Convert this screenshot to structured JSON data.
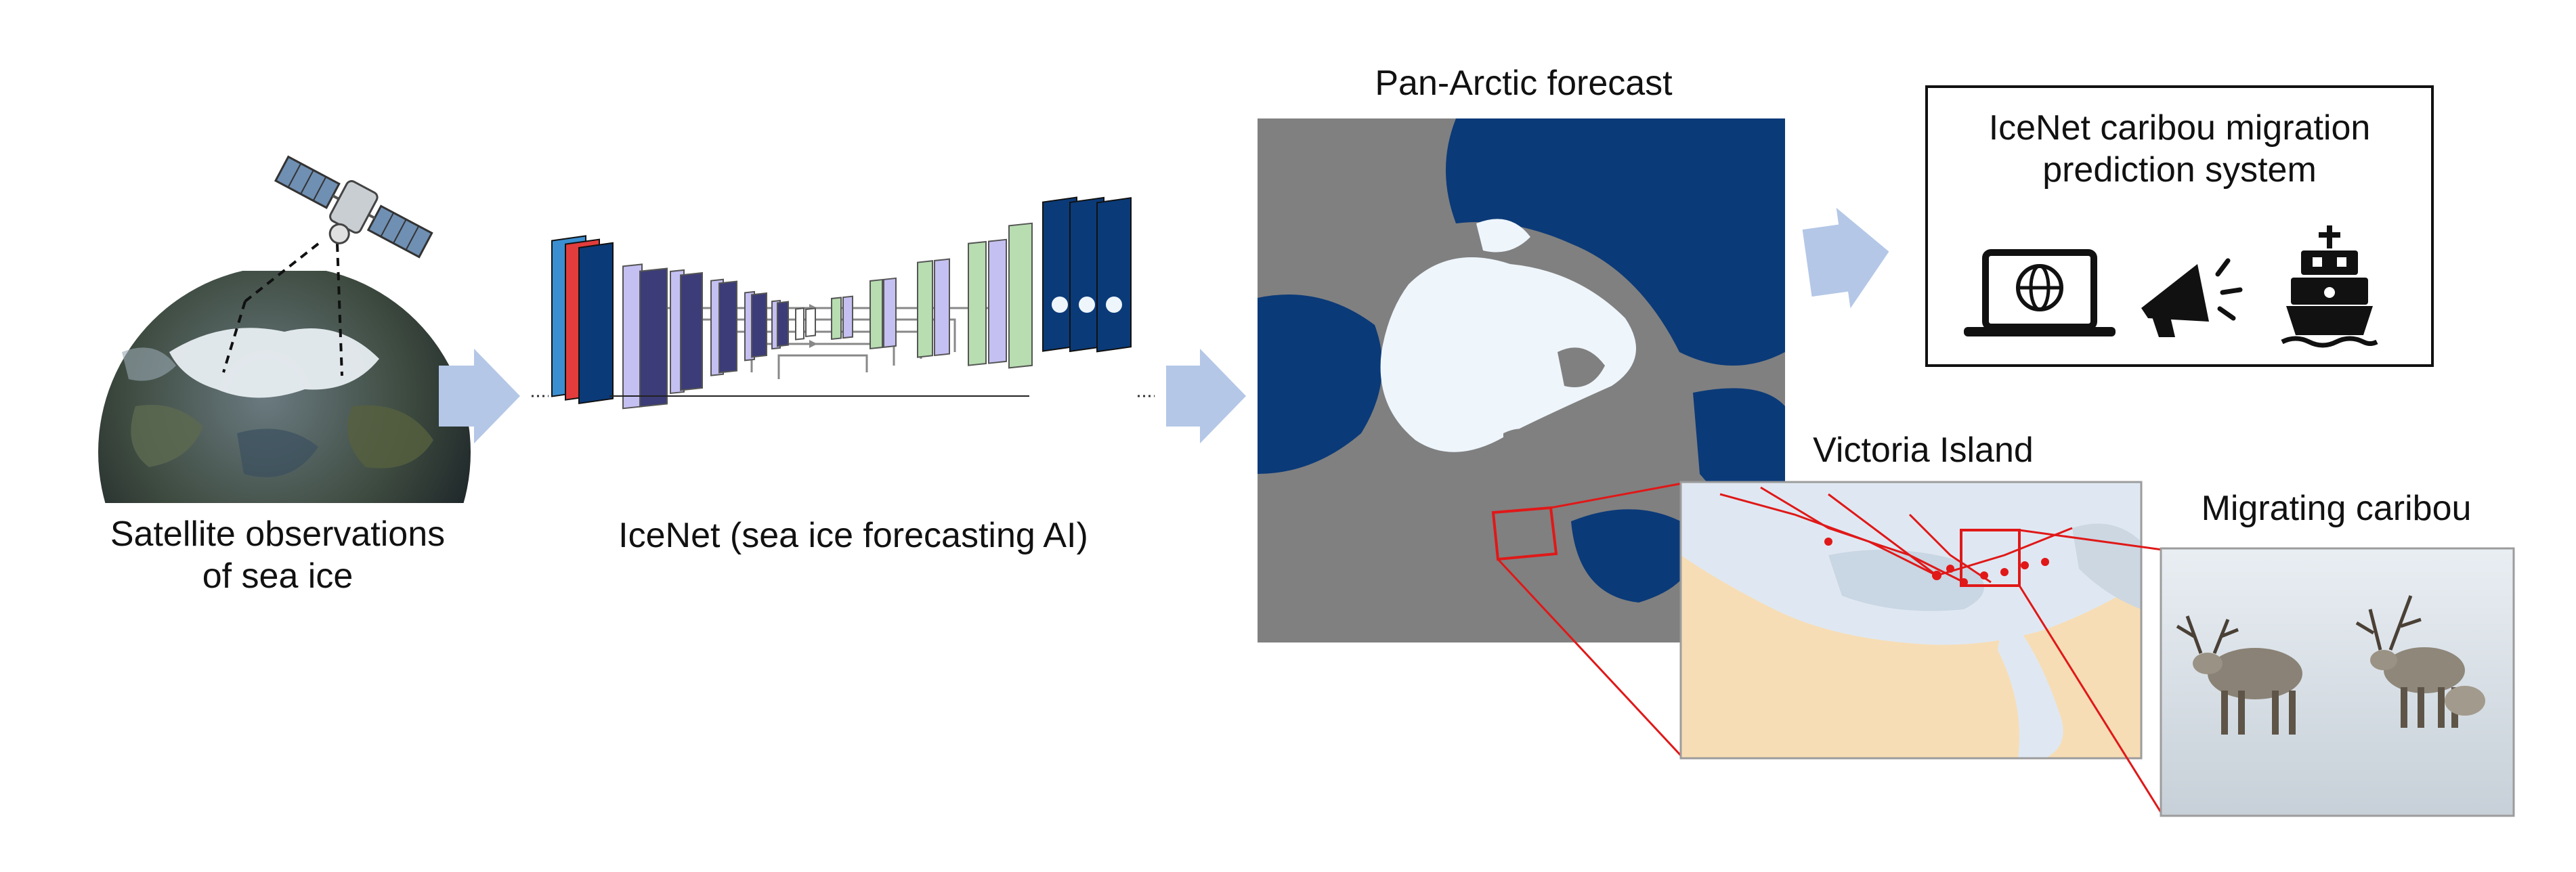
{
  "labels": {
    "satellite_line1": "Satellite observations",
    "satellite_line2": "of sea ice",
    "icenet": "IceNet (sea ice forecasting AI)",
    "pan_arctic": "Pan-Arctic forecast",
    "system_line1": "IceNet caribou migration",
    "system_line2": "prediction system",
    "victoria": "Victoria Island",
    "caribou": "Migrating caribou"
  },
  "icons": [
    "satellite-icon",
    "globe-icon",
    "laptop-globe-icon",
    "megaphone-icon",
    "ship-icon"
  ],
  "colors": {
    "arrow": "#b4c7e7",
    "ocean": "#0b3a78",
    "land": "#808080",
    "ice": "#eef5fb",
    "conv": "#b5b0ee",
    "conv_dark": "#3c3c78",
    "up_conv": "#b7ddb0",
    "map_land": "#f7ddb5",
    "migration": "#e01818",
    "zoom_lines": "#e01818"
  }
}
